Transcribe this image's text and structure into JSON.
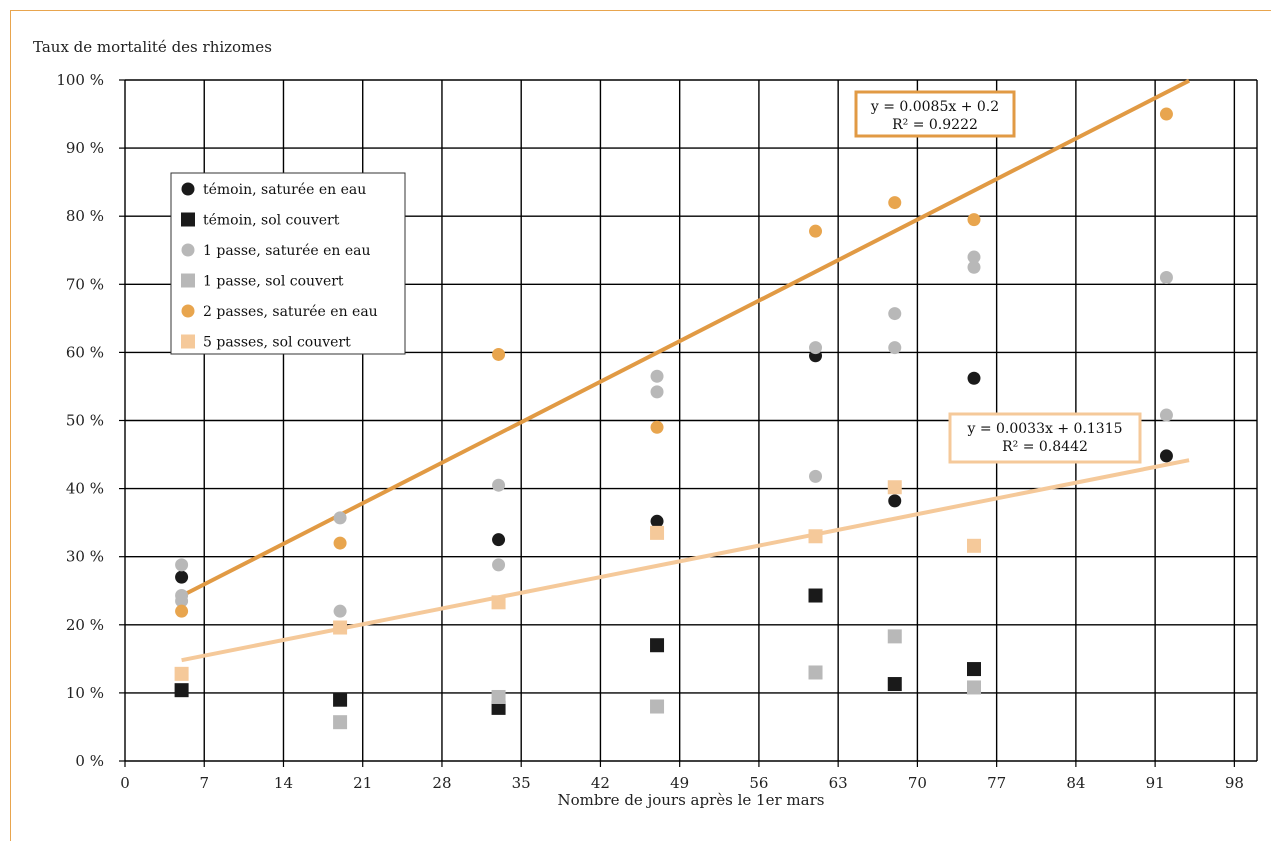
{
  "chart_data": {
    "type": "scatter",
    "ylabel": "Taux de mortalité des rhizomes",
    "xlabel": "Nombre de jours après le 1er mars",
    "xlim": [
      0,
      100
    ],
    "ylim": [
      0,
      1
    ],
    "x_ticks": [
      "0",
      "7",
      "14",
      "21",
      "28",
      "35",
      "42",
      "49",
      "56",
      "63",
      "70",
      "77",
      "84",
      "91",
      "98"
    ],
    "y_ticks": [
      "0 %",
      "10 %",
      "20 %",
      "30 %",
      "40 %",
      "50 %",
      "60 %",
      "70 %",
      "80 %",
      "90 %",
      "100 %"
    ],
    "grid": true,
    "legend_position": "top-left",
    "series": [
      {
        "name": "témoin, saturée en eau",
        "marker": "circle",
        "color": "#1a1a1a",
        "points": [
          [
            5,
            0.27
          ],
          [
            33,
            0.325
          ],
          [
            47,
            0.352
          ],
          [
            61,
            0.595
          ],
          [
            68,
            0.382
          ],
          [
            75,
            0.562
          ],
          [
            92,
            0.448
          ]
        ]
      },
      {
        "name": "témoin, sol couvert",
        "marker": "square",
        "color": "#1a1a1a",
        "points": [
          [
            5,
            0.104
          ],
          [
            19,
            0.09
          ],
          [
            33,
            0.078
          ],
          [
            47,
            0.17
          ],
          [
            61,
            0.243
          ],
          [
            68,
            0.113
          ],
          [
            75,
            0.135
          ]
        ]
      },
      {
        "name": "1 passe, saturée en eau",
        "marker": "circle",
        "color": "#b8b8b8",
        "points": [
          [
            5,
            0.288
          ],
          [
            5,
            0.243
          ],
          [
            5,
            0.235
          ],
          [
            19,
            0.357
          ],
          [
            19,
            0.22
          ],
          [
            33,
            0.405
          ],
          [
            33,
            0.288
          ],
          [
            47,
            0.565
          ],
          [
            47,
            0.542
          ],
          [
            61,
            0.607
          ],
          [
            61,
            0.418
          ],
          [
            68,
            0.657
          ],
          [
            68,
            0.607
          ],
          [
            75,
            0.74
          ],
          [
            75,
            0.725
          ],
          [
            92,
            0.71
          ],
          [
            92,
            0.508
          ]
        ]
      },
      {
        "name": "1 passe, sol couvert",
        "marker": "square",
        "color": "#b8b8b8",
        "points": [
          [
            19,
            0.057
          ],
          [
            33,
            0.094
          ],
          [
            47,
            0.08
          ],
          [
            61,
            0.13
          ],
          [
            68,
            0.183
          ],
          [
            75,
            0.108
          ]
        ]
      },
      {
        "name": "2 passes, saturée en eau",
        "marker": "circle",
        "color": "#e8a54e",
        "points": [
          [
            5,
            0.22
          ],
          [
            19,
            0.32
          ],
          [
            33,
            0.597
          ],
          [
            47,
            0.49
          ],
          [
            61,
            0.778
          ],
          [
            68,
            0.82
          ],
          [
            75,
            0.795
          ],
          [
            92,
            0.95
          ]
        ]
      },
      {
        "name": "5 passes, sol couvert",
        "marker": "square",
        "color": "#f5c99a",
        "points": [
          [
            5,
            0.128
          ],
          [
            19,
            0.196
          ],
          [
            33,
            0.233
          ],
          [
            47,
            0.335
          ],
          [
            61,
            0.33
          ],
          [
            68,
            0.402
          ],
          [
            75,
            0.316
          ]
        ]
      }
    ],
    "trendlines": [
      {
        "equation": "y = 0.0085x + 0.2",
        "r2": "R² = 0.9222",
        "color": "#e19a44",
        "slope": 0.0085,
        "intercept": 0.2,
        "x_range": [
          5,
          94
        ]
      },
      {
        "equation": "y = 0.0033x + 0.1315",
        "r2": "R² = 0.8442",
        "color": "#f5c99a",
        "slope": 0.0033,
        "intercept": 0.1315,
        "x_range": [
          5,
          94
        ]
      }
    ]
  }
}
